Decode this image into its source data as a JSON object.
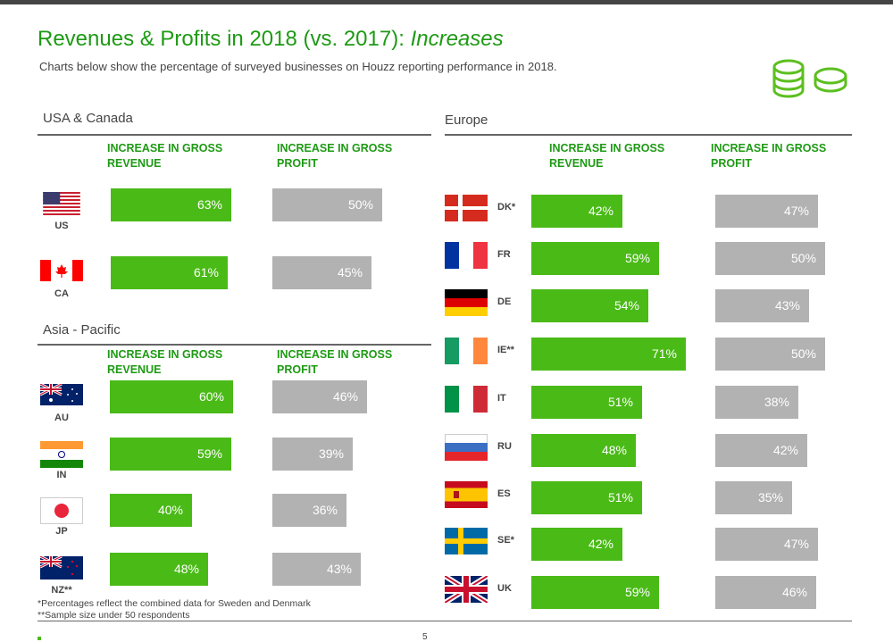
{
  "header": {
    "title_main": "Revenues & Profits in 2018 (vs. 2017): ",
    "title_italic": "Increases",
    "subtitle": "Charts below show the percentage of surveyed businesses on Houzz reporting performance in 2018.",
    "icon": "coins-icon"
  },
  "columns": {
    "revenue": "INCREASE IN GROSS REVENUE",
    "revenue_l1": "INCREASE IN GROSS",
    "revenue_l2": "REVENUE",
    "profit_l1": "INCREASE IN GROSS",
    "profit_l2": "PROFIT"
  },
  "colors": {
    "revenue": "#4aba17",
    "profit": "#b2b2b2",
    "accent": "#1e9a14"
  },
  "chart_data": [
    {
      "type": "bar",
      "title": "USA & Canada",
      "categories": [
        "US",
        "CA"
      ],
      "series": [
        {
          "name": "Increase in Gross Revenue",
          "values": [
            63,
            61
          ]
        },
        {
          "name": "Increase in Gross Profit",
          "values": [
            50,
            45
          ]
        }
      ],
      "unit": "%"
    },
    {
      "type": "bar",
      "title": "Asia - Pacific",
      "categories": [
        "AU",
        "IN",
        "JP",
        "NZ**"
      ],
      "series": [
        {
          "name": "Increase in Gross Revenue",
          "values": [
            60,
            59,
            40,
            48
          ]
        },
        {
          "name": "Increase in Gross Profit",
          "values": [
            46,
            39,
            36,
            43
          ]
        }
      ],
      "unit": "%"
    },
    {
      "type": "bar",
      "title": "Europe",
      "categories": [
        "DK*",
        "FR",
        "DE",
        "IE**",
        "IT",
        "RU",
        "ES",
        "SE*",
        "UK"
      ],
      "series": [
        {
          "name": "Increase in Gross Revenue",
          "values": [
            42,
            59,
            54,
            71,
            51,
            48,
            51,
            42,
            59
          ]
        },
        {
          "name": "Increase in Gross Profit",
          "values": [
            47,
            50,
            43,
            50,
            38,
            42,
            35,
            47,
            46
          ]
        }
      ],
      "unit": "%"
    }
  ],
  "footnotes": [
    "*Percentages reflect the combined data for Sweden and Denmark",
    "**Sample size under 50 respondents"
  ],
  "page_number": "5"
}
